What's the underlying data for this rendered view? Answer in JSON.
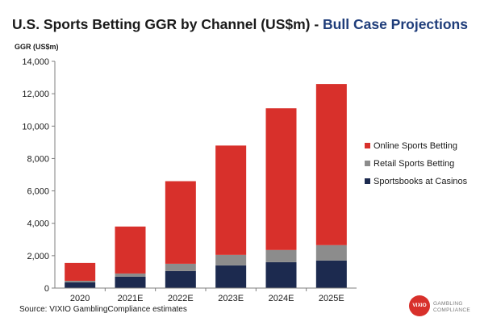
{
  "title": {
    "main": "U.S. Sports Betting GGR by Channel (US$m) - ",
    "sub": "Bull Case Projections"
  },
  "source": "Source: VIXIO GamblingCompliance estimates",
  "logo": {
    "badge": "VIXIO",
    "line1": "GAMBLING",
    "line2": "COMPLIANCE"
  },
  "chart_data": {
    "type": "bar",
    "stacked": true,
    "title": "U.S. Sports Betting GGR by Channel (US$m) - Bull Case Projections",
    "ylabel": "GGR (US$m)",
    "xlabel": "",
    "ylim": [
      0,
      14000
    ],
    "yticks": [
      0,
      2000,
      4000,
      6000,
      8000,
      10000,
      12000,
      14000
    ],
    "ytick_labels": [
      "0",
      "2,000",
      "4,000",
      "6,000",
      "8,000",
      "10,000",
      "12,000",
      "14,000"
    ],
    "grid": false,
    "legend_position": "right",
    "categories": [
      "2020",
      "2021E",
      "2022E",
      "2023E",
      "2024E",
      "2025E"
    ],
    "series": [
      {
        "name": "Sportsbooks at Casinos",
        "color": "#1c2a4f",
        "values": [
          350,
          700,
          1050,
          1400,
          1600,
          1700
        ]
      },
      {
        "name": "Retail Sports Betting",
        "color": "#8c8c8c",
        "values": [
          100,
          200,
          450,
          650,
          750,
          950
        ]
      },
      {
        "name": "Online Sports Betting",
        "color": "#d8302b",
        "values": [
          1100,
          2900,
          5100,
          6750,
          8750,
          9950
        ]
      }
    ],
    "legend_order": [
      "Online Sports Betting",
      "Retail Sports Betting",
      "Sportsbooks at Casinos"
    ]
  }
}
